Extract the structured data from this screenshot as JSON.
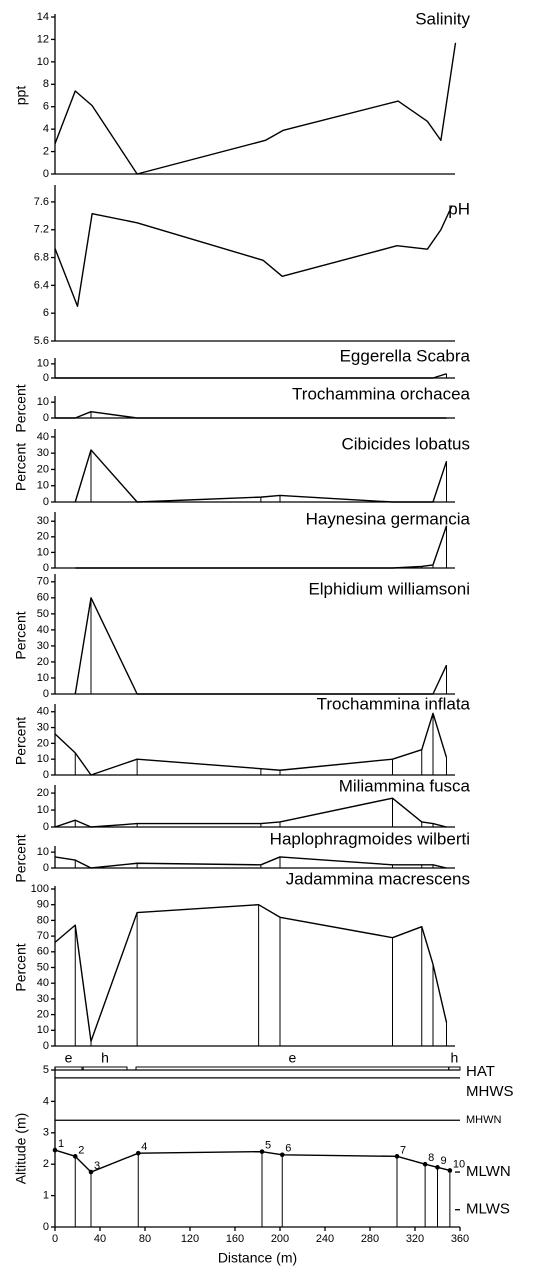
{
  "chart_data": [
    {
      "type": "line",
      "title": "Salinity",
      "ylabel": "ppt",
      "x": [
        0,
        18,
        33,
        73,
        187,
        203,
        305,
        331,
        343,
        356
      ],
      "values": [
        2.7,
        7.4,
        6.1,
        0,
        3,
        3.9,
        6.5,
        4.7,
        3,
        11.7
      ],
      "ylim": [
        0,
        14
      ],
      "yticks": [
        0,
        2,
        4,
        6,
        8,
        10,
        12,
        14
      ],
      "color": "#000000"
    },
    {
      "type": "line",
      "title": "pH",
      "x": [
        0,
        20,
        33,
        73,
        185,
        202,
        304,
        331,
        343,
        353
      ],
      "values": [
        6.93,
        6.1,
        7.43,
        7.3,
        6.76,
        6.53,
        6.97,
        6.92,
        7.2,
        7.55
      ],
      "ylim": [
        5.6,
        7.8
      ],
      "yticks": [
        5.6,
        6,
        6.4,
        6.8,
        7.2,
        7.6
      ],
      "color": "#000000"
    },
    {
      "type": "line",
      "title": "Eggerella Scabra",
      "x": [
        0,
        18,
        32,
        73,
        183,
        200,
        300,
        326,
        336,
        348
      ],
      "values": [
        0,
        0,
        0,
        0,
        0,
        0,
        0,
        0,
        0,
        3
      ],
      "ylim": [
        0,
        12
      ],
      "yticks": [
        0,
        10
      ],
      "color": "#000000",
      "drop_lines": true
    },
    {
      "type": "line",
      "title": "Trochammina orchacea",
      "ylabel": "Percent",
      "x": [
        0,
        18,
        32,
        73,
        183,
        200,
        300,
        326,
        336,
        348
      ],
      "values": [
        0,
        0,
        4,
        0,
        0,
        0,
        0,
        0,
        0,
        0
      ],
      "ylim": [
        0,
        12
      ],
      "yticks": [
        0,
        10
      ],
      "color": "#000000",
      "drop_lines": true
    },
    {
      "type": "line",
      "title": "Cibicides lobatus",
      "ylabel": "Percent",
      "x": [
        0,
        18,
        32,
        73,
        183,
        200,
        300,
        326,
        336,
        348
      ],
      "values": [
        null,
        0,
        32,
        0,
        3,
        4,
        0,
        0,
        0,
        25
      ],
      "ylim": [
        0,
        43
      ],
      "yticks": [
        0,
        10,
        20,
        30,
        40
      ],
      "color": "#000000",
      "drop_lines": true
    },
    {
      "type": "line",
      "title": "Haynesina germancia",
      "x": [
        0,
        18,
        32,
        73,
        183,
        200,
        300,
        326,
        336,
        348
      ],
      "values": [
        null,
        0,
        0,
        0,
        0,
        0,
        0,
        1,
        2,
        27
      ],
      "ylim": [
        0,
        34
      ],
      "yticks": [
        0,
        10,
        20,
        30
      ],
      "color": "#000000",
      "drop_lines": true
    },
    {
      "type": "line",
      "title": "Elphidium williamsoni",
      "ylabel": "Percent",
      "x": [
        0,
        18,
        32,
        73,
        183,
        200,
        300,
        326,
        336,
        348
      ],
      "values": [
        null,
        0,
        60,
        0,
        0,
        0,
        0,
        0,
        0,
        18
      ],
      "ylim": [
        0,
        73
      ],
      "yticks": [
        0,
        10,
        20,
        30,
        40,
        50,
        60,
        70
      ],
      "color": "#000000",
      "drop_lines": true
    },
    {
      "type": "line",
      "title": "Trochammina inflata",
      "ylabel": "Percent",
      "x": [
        0,
        18,
        32,
        73,
        183,
        200,
        300,
        326,
        336,
        348
      ],
      "values": [
        26,
        14,
        0,
        10,
        4,
        3,
        10,
        16,
        39,
        11
      ],
      "ylim": [
        0,
        43
      ],
      "yticks": [
        0,
        10,
        20,
        30,
        40
      ],
      "color": "#000000",
      "drop_lines": true
    },
    {
      "type": "line",
      "title": "Miliammina fusca",
      "x": [
        0,
        18,
        32,
        73,
        183,
        200,
        300,
        326,
        336,
        348
      ],
      "values": [
        0,
        4,
        0,
        2,
        2,
        3,
        17,
        3,
        2,
        0
      ],
      "ylim": [
        0,
        23
      ],
      "yticks": [
        0,
        10,
        20
      ],
      "color": "#000000",
      "drop_lines": true
    },
    {
      "type": "line",
      "title": "Haplophragmoides wilberti",
      "ylabel": "Percent",
      "x": [
        0,
        18,
        32,
        73,
        183,
        200,
        300,
        326,
        336,
        348
      ],
      "values": [
        7,
        5,
        0,
        3,
        2,
        7,
        2,
        2,
        2,
        0
      ],
      "ylim": [
        0,
        12
      ],
      "yticks": [
        0,
        10
      ],
      "color": "#000000",
      "drop_lines": true
    },
    {
      "type": "line",
      "title": "Jadammina macrescens",
      "ylabel": "Percent",
      "x": [
        0,
        18,
        32,
        73,
        181,
        200,
        300,
        326,
        336,
        348
      ],
      "values": [
        66,
        77,
        3,
        85,
        90,
        82,
        69,
        76,
        52,
        15
      ],
      "ylim": [
        0,
        100
      ],
      "yticks": [
        0,
        10,
        20,
        30,
        40,
        50,
        60,
        70,
        80,
        90,
        100
      ],
      "color": "#000000",
      "drop_lines": true
    },
    {
      "type": "line",
      "xlabel": "Distance (m)",
      "ylabel": "Altitude (m)",
      "x": [
        0,
        18,
        32,
        74,
        184,
        202,
        304,
        329,
        340,
        351
      ],
      "values": [
        2.45,
        2.25,
        1.75,
        2.35,
        2.4,
        2.3,
        2.25,
        2.0,
        1.9,
        1.8
      ],
      "point_labels": [
        "1",
        "2",
        "3",
        "4",
        "5",
        "6",
        "7",
        "8",
        "9",
        "10"
      ],
      "ylim": [
        0,
        5
      ],
      "yticks": [
        0,
        1,
        2,
        3,
        4,
        5
      ],
      "xlim": [
        0,
        360
      ],
      "xticks": [
        0,
        40,
        80,
        120,
        160,
        200,
        240,
        280,
        320,
        360
      ],
      "color": "#000000",
      "drop_lines": true,
      "markers": true,
      "levels": [
        {
          "label": "HAT",
          "value": 5,
          "style": "full"
        },
        {
          "label": "MHWS",
          "value": 4.75,
          "style": "full"
        },
        {
          "label": "MHWN",
          "value": 3.4,
          "style": "full"
        },
        {
          "label": "MLWN",
          "value": 1.75,
          "style": "short"
        },
        {
          "label": "MLWS",
          "value": 0.55,
          "style": "short"
        }
      ],
      "zones": [
        {
          "label": "e",
          "start": 0,
          "end": 24
        },
        {
          "label": "h",
          "start": 25,
          "end": 64
        },
        {
          "label": "e",
          "start": 72,
          "end": 350
        },
        {
          "label": "h",
          "start": 350,
          "end": 360
        }
      ]
    }
  ]
}
